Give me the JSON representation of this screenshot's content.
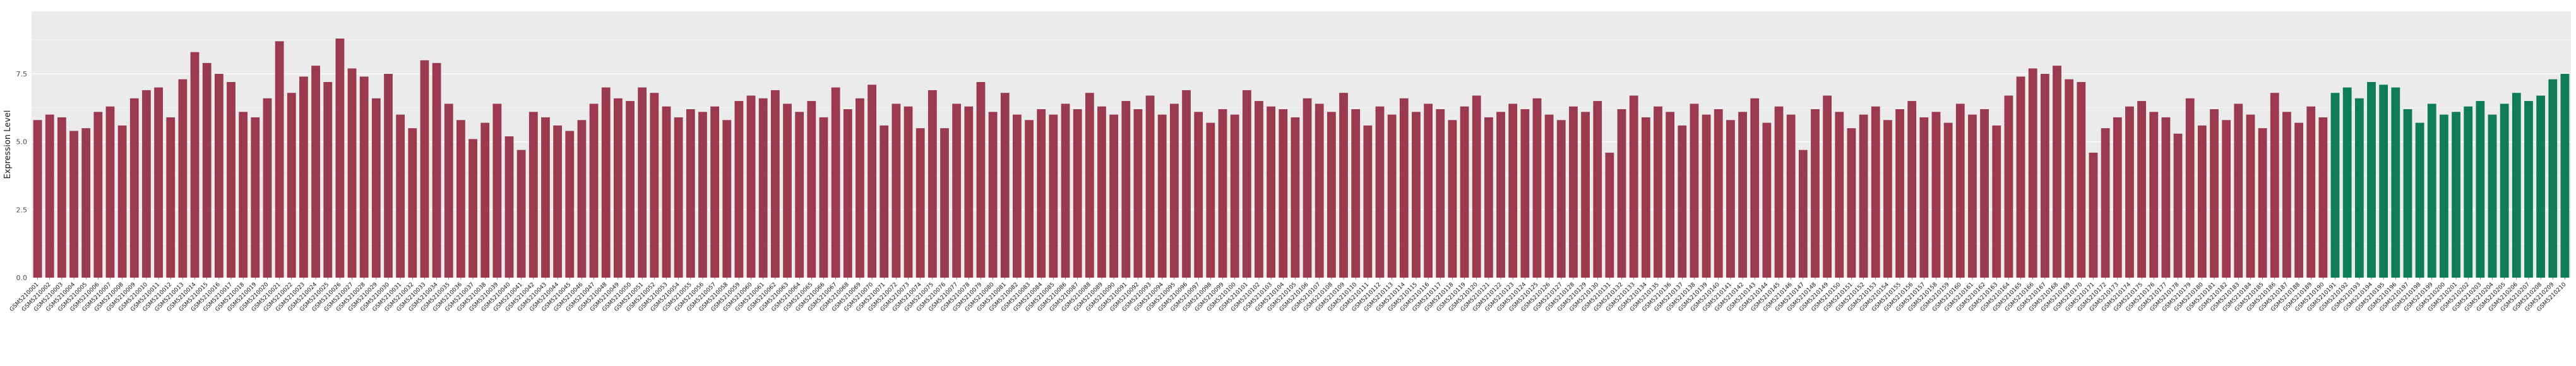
{
  "chart_data": {
    "type": "bar",
    "title": "",
    "xlabel": "",
    "ylabel": "Expression Level",
    "ylim": [
      0,
      9.8
    ],
    "yticks": [
      0.0,
      2.5,
      5.0,
      7.5
    ],
    "grid": true,
    "legend": "none",
    "panel_background": "#ebebeb",
    "grid_color": "#ffffff",
    "axis_text_color": "#4d4d4d",
    "x_label_color": "#1a1a1a",
    "bar_colors": {
      "group_red": "#9B3A4E",
      "group_green": "#0E7C58"
    },
    "green_start_index": 190,
    "categories": [
      "GSM5210001",
      "GSM5210002",
      "GSM5210003",
      "GSM5210004",
      "GSM5210005",
      "GSM5210006",
      "GSM5210007",
      "GSM5210008",
      "GSM5210009",
      "GSM5210010",
      "GSM5210011",
      "GSM5210012",
      "GSM5210013",
      "GSM5210014",
      "GSM5210015",
      "GSM5210016",
      "GSM5210017",
      "GSM5210018",
      "GSM5210019",
      "GSM5210020",
      "GSM5210021",
      "GSM5210022",
      "GSM5210023",
      "GSM5210024",
      "GSM5210025",
      "GSM5210026",
      "GSM5210027",
      "GSM5210028",
      "GSM5210029",
      "GSM5210030",
      "GSM5210031",
      "GSM5210032",
      "GSM5210033",
      "GSM5210034",
      "GSM5210035",
      "GSM5210036",
      "GSM5210037",
      "GSM5210038",
      "GSM5210039",
      "GSM5210040",
      "GSM5210041",
      "GSM5210042",
      "GSM5210043",
      "GSM5210044",
      "GSM5210045",
      "GSM5210046",
      "GSM5210047",
      "GSM5210048",
      "GSM5210049",
      "GSM5210050",
      "GSM5210051",
      "GSM5210052",
      "GSM5210053",
      "GSM5210054",
      "GSM5210055",
      "GSM5210056",
      "GSM5210057",
      "GSM5210058",
      "GSM5210059",
      "GSM5210060",
      "GSM5210061",
      "GSM5210062",
      "GSM5210063",
      "GSM5210064",
      "GSM5210065",
      "GSM5210066",
      "GSM5210067",
      "GSM5210068",
      "GSM5210069",
      "GSM5210070",
      "GSM5210071",
      "GSM5210072",
      "GSM5210073",
      "GSM5210074",
      "GSM5210075",
      "GSM5210076",
      "GSM5210077",
      "GSM5210078",
      "GSM5210079",
      "GSM5210080",
      "GSM5210081",
      "GSM5210082",
      "GSM5210083",
      "GSM5210084",
      "GSM5210085",
      "GSM5210086",
      "GSM5210087",
      "GSM5210088",
      "GSM5210089",
      "GSM5210090",
      "GSM5210091",
      "GSM5210092",
      "GSM5210093",
      "GSM5210094",
      "GSM5210095",
      "GSM5210096",
      "GSM5210097",
      "GSM5210098",
      "GSM5210099",
      "GSM5210100",
      "GSM5210101",
      "GSM5210102",
      "GSM5210103",
      "GSM5210104",
      "GSM5210105",
      "GSM5210106",
      "GSM5210107",
      "GSM5210108",
      "GSM5210109",
      "GSM5210110",
      "GSM5210111",
      "GSM5210112",
      "GSM5210113",
      "GSM5210114",
      "GSM5210115",
      "GSM5210116",
      "GSM5210117",
      "GSM5210118",
      "GSM5210119",
      "GSM5210120",
      "GSM5210121",
      "GSM5210122",
      "GSM5210123",
      "GSM5210124",
      "GSM5210125",
      "GSM5210126",
      "GSM5210127",
      "GSM5210128",
      "GSM5210129",
      "GSM5210130",
      "GSM5210131",
      "GSM5210132",
      "GSM5210133",
      "GSM5210134",
      "GSM5210135",
      "GSM5210136",
      "GSM5210137",
      "GSM5210138",
      "GSM5210139",
      "GSM5210140",
      "GSM5210141",
      "GSM5210142",
      "GSM5210143",
      "GSM5210144",
      "GSM5210145",
      "GSM5210146",
      "GSM5210147",
      "GSM5210148",
      "GSM5210149",
      "GSM5210150",
      "GSM5210151",
      "GSM5210152",
      "GSM5210153",
      "GSM5210154",
      "GSM5210155",
      "GSM5210156",
      "GSM5210157",
      "GSM5210158",
      "GSM5210159",
      "GSM5210160",
      "GSM5210161",
      "GSM5210162",
      "GSM5210163",
      "GSM5210164",
      "GSM5210165",
      "GSM5210166",
      "GSM5210167",
      "GSM5210168",
      "GSM5210169",
      "GSM5210170",
      "GSM5210171",
      "GSM5210172",
      "GSM5210173",
      "GSM5210174",
      "GSM5210175",
      "GSM5210176",
      "GSM5210177",
      "GSM5210178",
      "GSM5210179",
      "GSM5210180",
      "GSM5210181",
      "GSM5210182",
      "GSM5210183",
      "GSM5210184",
      "GSM5210185",
      "GSM5210186",
      "GSM5210187",
      "GSM5210188",
      "GSM5210189",
      "GSM5210190",
      "GSM5210191",
      "GSM5210192",
      "GSM5210193",
      "GSM5210194",
      "GSM5210195",
      "GSM5210196",
      "GSM5210197",
      "GSM5210198",
      "GSM5210199",
      "GSM5210200",
      "GSM5210201",
      "GSM5210202",
      "GSM5210203",
      "GSM5210204",
      "GSM5210205",
      "GSM5210206",
      "GSM5210207",
      "GSM5210208",
      "GSM5210209",
      "GSM5210210"
    ],
    "values": [
      5.8,
      6.0,
      5.9,
      5.4,
      5.5,
      6.1,
      6.3,
      5.6,
      6.6,
      6.9,
      7.0,
      5.9,
      7.3,
      8.3,
      7.9,
      7.5,
      7.2,
      6.1,
      5.9,
      6.6,
      8.7,
      6.8,
      7.4,
      7.8,
      7.2,
      8.8,
      7.7,
      7.4,
      6.6,
      7.5,
      6.0,
      5.5,
      8.0,
      7.9,
      6.4,
      5.8,
      5.1,
      5.7,
      6.4,
      5.2,
      4.7,
      6.1,
      5.9,
      5.6,
      5.4,
      5.8,
      6.4,
      7.0,
      6.6,
      6.5,
      7.0,
      6.8,
      6.3,
      5.9,
      6.2,
      6.1,
      6.3,
      5.8,
      6.5,
      6.7,
      6.6,
      6.9,
      6.4,
      6.1,
      6.5,
      5.9,
      7.0,
      6.2,
      6.6,
      7.1,
      5.6,
      6.4,
      6.3,
      5.5,
      6.9,
      5.5,
      6.4,
      6.3,
      7.2,
      6.1,
      6.8,
      6.0,
      5.8,
      6.2,
      6.0,
      6.4,
      6.2,
      6.8,
      6.3,
      6.0,
      6.5,
      6.2,
      6.7,
      6.0,
      6.4,
      6.9,
      6.1,
      5.7,
      6.2,
      6.0,
      6.9,
      6.5,
      6.3,
      6.2,
      5.9,
      6.6,
      6.4,
      6.1,
      6.8,
      6.2,
      5.6,
      6.3,
      6.0,
      6.6,
      6.1,
      6.4,
      6.2,
      5.8,
      6.3,
      6.7,
      5.9,
      6.1,
      6.4,
      6.2,
      6.6,
      6.0,
      5.8,
      6.3,
      6.1,
      6.5,
      4.6,
      6.2,
      6.7,
      5.9,
      6.3,
      6.1,
      5.6,
      6.4,
      6.0,
      6.2,
      5.8,
      6.1,
      6.6,
      5.7,
      6.3,
      6.0,
      4.7,
      6.2,
      6.7,
      6.1,
      5.5,
      6.0,
      6.3,
      5.8,
      6.2,
      6.5,
      5.9,
      6.1,
      5.7,
      6.4,
      6.0,
      6.2,
      5.6,
      6.7,
      7.4,
      7.7,
      7.5,
      7.8,
      7.3,
      7.2,
      4.6,
      5.5,
      5.9,
      6.3,
      6.5,
      6.1,
      5.9,
      5.3,
      6.6,
      5.6,
      6.2,
      5.8,
      6.4,
      6.0,
      5.5,
      6.8,
      6.1,
      5.7,
      6.3,
      5.9,
      6.8,
      7.0,
      6.6,
      7.2,
      7.1,
      7.0,
      6.2,
      5.7,
      6.4,
      6.0,
      6.1,
      6.3,
      6.5,
      6.0,
      6.4,
      6.8,
      6.5,
      6.7,
      7.3,
      7.5
    ]
  }
}
